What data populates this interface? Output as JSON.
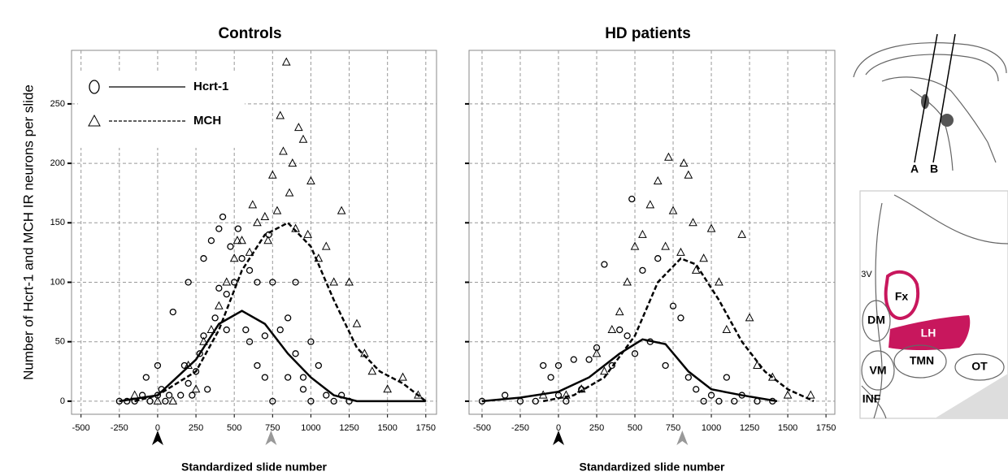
{
  "chart_data": [
    {
      "type": "scatter",
      "title": "Controls",
      "xlabel": "Standardized slide number",
      "ylabel": "Number of Hcrt-1 and MCH IR neurons per slide",
      "xlim": [
        -562,
        1820
      ],
      "ylim": [
        -11,
        295
      ],
      "xticks": [
        -500,
        -250,
        0,
        250,
        500,
        750,
        1000,
        1250,
        1500,
        1750
      ],
      "yticks": [
        0,
        50,
        100,
        150,
        200,
        250
      ],
      "grid": true,
      "legend": "upper left",
      "arrows": [
        {
          "x": 0,
          "color": "#000000"
        },
        {
          "x": 740,
          "color": "#999999"
        }
      ],
      "series": [
        {
          "name": "Hcrt-1",
          "marker": "circle",
          "dash": "solid",
          "color": "#000000",
          "x": [
            -250,
            -200,
            -150,
            -100,
            -75,
            -50,
            0,
            0,
            25,
            50,
            75,
            100,
            150,
            175,
            200,
            200,
            225,
            250,
            275,
            300,
            300,
            325,
            350,
            375,
            400,
            400,
            425,
            450,
            450,
            475,
            500,
            525,
            550,
            575,
            600,
            600,
            650,
            650,
            700,
            700,
            725,
            750,
            750,
            800,
            850,
            850,
            900,
            900,
            950,
            950,
            1000,
            1000,
            1050,
            1100,
            1150,
            1200,
            1250
          ],
          "values": [
            0,
            0,
            0,
            5,
            20,
            0,
            30,
            5,
            10,
            0,
            5,
            75,
            5,
            30,
            100,
            15,
            5,
            25,
            40,
            55,
            120,
            10,
            135,
            70,
            95,
            145,
            155,
            90,
            60,
            130,
            100,
            145,
            120,
            60,
            110,
            50,
            100,
            30,
            55,
            20,
            140,
            100,
            0,
            60,
            70,
            20,
            40,
            100,
            20,
            10,
            0,
            50,
            30,
            5,
            0,
            5,
            0
          ],
          "fit": {
            "x": [
              -250,
              0,
              250,
              400,
              550,
              700,
              850,
              1000,
              1150,
              1300,
              1500,
              1750
            ],
            "values": [
              0,
              5,
              35,
              65,
              76,
              65,
              40,
              20,
              5,
              0,
              0,
              0
            ]
          }
        },
        {
          "name": "MCH",
          "marker": "triangle",
          "dash": "dashed",
          "color": "#000000",
          "x": [
            -150,
            0,
            100,
            200,
            250,
            300,
            350,
            400,
            450,
            500,
            520,
            550,
            600,
            620,
            650,
            700,
            720,
            750,
            780,
            800,
            820,
            840,
            860,
            880,
            900,
            920,
            950,
            980,
            1000,
            1050,
            1100,
            1150,
            1200,
            1250,
            1300,
            1350,
            1400,
            1500,
            1600,
            1700
          ],
          "values": [
            5,
            0,
            0,
            30,
            10,
            50,
            60,
            80,
            100,
            120,
            135,
            135,
            125,
            165,
            150,
            155,
            135,
            190,
            160,
            240,
            210,
            285,
            175,
            200,
            145,
            230,
            220,
            140,
            185,
            120,
            130,
            100,
            160,
            100,
            65,
            40,
            25,
            10,
            20,
            5
          ],
          "fit": {
            "x": [
              -150,
              0,
              250,
              400,
              550,
              700,
              850,
              1000,
              1150,
              1300,
              1450,
              1600,
              1750
            ],
            "values": [
              0,
              5,
              25,
              60,
              110,
              140,
              150,
              130,
              85,
              45,
              25,
              15,
              0
            ]
          }
        }
      ]
    },
    {
      "type": "scatter",
      "title": "HD patients",
      "xlabel": "Standardized slide number",
      "xlim": [
        -585,
        1808
      ],
      "ylim": [
        -11,
        295
      ],
      "xticks": [
        -500,
        -250,
        0,
        250,
        500,
        750,
        1000,
        1250,
        1500,
        1750
      ],
      "yticks": [
        0,
        50,
        100,
        150,
        200,
        250
      ],
      "grid": true,
      "arrows": [
        {
          "x": 0,
          "color": "#000000"
        },
        {
          "x": 810,
          "color": "#999999"
        }
      ],
      "series": [
        {
          "marker": "circle",
          "dash": "solid",
          "color": "#000000",
          "x": [
            -500,
            -350,
            -250,
            -150,
            -100,
            -50,
            0,
            0,
            50,
            100,
            150,
            200,
            250,
            300,
            350,
            400,
            450,
            480,
            500,
            550,
            600,
            650,
            700,
            750,
            800,
            850,
            900,
            950,
            1000,
            1050,
            1100,
            1150,
            1200,
            1300,
            1400
          ],
          "values": [
            0,
            5,
            0,
            0,
            30,
            20,
            30,
            5,
            0,
            35,
            10,
            35,
            45,
            115,
            30,
            60,
            55,
            170,
            40,
            110,
            50,
            120,
            30,
            80,
            70,
            20,
            10,
            0,
            5,
            0,
            20,
            0,
            5,
            0,
            0
          ],
          "fit": {
            "x": [
              -500,
              -250,
              0,
              200,
              400,
              550,
              700,
              850,
              1000,
              1200,
              1430
            ],
            "values": [
              0,
              3,
              8,
              20,
              40,
              52,
              48,
              25,
              10,
              5,
              0
            ]
          }
        },
        {
          "marker": "triangle",
          "dash": "dashed",
          "color": "#000000",
          "x": [
            -100,
            50,
            150,
            250,
            300,
            350,
            400,
            450,
            500,
            550,
            600,
            650,
            700,
            720,
            750,
            800,
            820,
            850,
            880,
            900,
            950,
            1000,
            1050,
            1100,
            1200,
            1250,
            1300,
            1400,
            1500,
            1650
          ],
          "values": [
            5,
            5,
            10,
            40,
            25,
            60,
            75,
            100,
            130,
            140,
            165,
            185,
            130,
            205,
            160,
            125,
            200,
            190,
            150,
            110,
            120,
            145,
            100,
            60,
            140,
            70,
            30,
            20,
            5,
            5
          ],
          "fit": {
            "x": [
              -100,
              100,
              300,
              500,
              650,
              800,
              900,
              1050,
              1200,
              1350,
              1500,
              1670
            ],
            "values": [
              0,
              5,
              20,
              55,
              100,
              120,
              115,
              85,
              50,
              25,
              10,
              0
            ]
          }
        }
      ]
    }
  ],
  "diagram": {
    "sagittal": {
      "labels": [
        "A",
        "B"
      ]
    },
    "coronal": {
      "labels": [
        "3V",
        "Fx",
        "DM",
        "LH",
        "VM",
        "TMN",
        "OT",
        "INF"
      ]
    }
  }
}
